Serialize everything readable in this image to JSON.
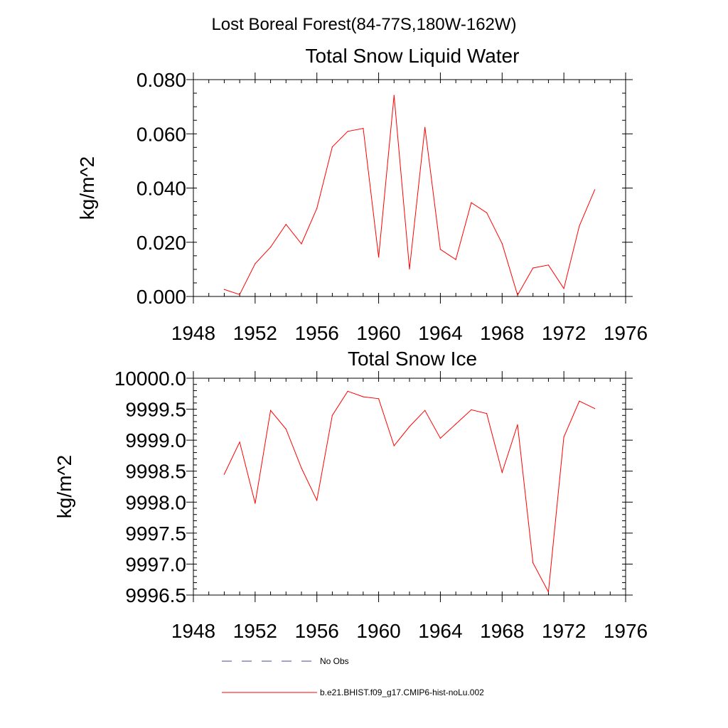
{
  "page_title": "Lost Boreal Forest(84-77S,180W-162W)",
  "colors": {
    "series": "#ff0000",
    "no_obs": "#4a4a8a",
    "axis": "#000000"
  },
  "legend": [
    {
      "label": "No Obs",
      "style": "dashed",
      "color": "#4a4a8a"
    },
    {
      "label": "b.e21.BHIST.f09_g17.CMIP6-hist-noLu.002",
      "style": "solid",
      "color": "#ff0000"
    }
  ],
  "chart_data": [
    {
      "type": "line",
      "title": "Total Snow Liquid Water",
      "xlabel": "",
      "ylabel": "kg/m^2",
      "xlim": [
        1948,
        1976
      ],
      "ylim": [
        0,
        0.08
      ],
      "xticks": [
        1948,
        1952,
        1956,
        1960,
        1964,
        1968,
        1972,
        1976
      ],
      "xtick_labels": [
        "1948",
        "1952",
        "1956",
        "1960",
        "1964",
        "1968",
        "1972",
        "1976"
      ],
      "yticks": [
        0,
        0.02,
        0.04,
        0.06,
        0.08
      ],
      "ytick_labels": [
        "0.000",
        "0.020",
        "0.040",
        "0.060",
        "0.080"
      ],
      "y_minor_step": 0.005,
      "x_minor_step": 1,
      "series": [
        {
          "name": "b.e21.BHIST.f09_g17.CMIP6-hist-noLu.002",
          "color": "#ff0000",
          "x": [
            1950,
            1951,
            1952,
            1953,
            1954,
            1955,
            1956,
            1957,
            1958,
            1959,
            1960,
            1961,
            1962,
            1963,
            1964,
            1965,
            1966,
            1967,
            1968,
            1969,
            1970,
            1971,
            1972,
            1973,
            1974
          ],
          "y": [
            0.0026,
            0.0007,
            0.0121,
            0.0182,
            0.0266,
            0.0194,
            0.0325,
            0.0552,
            0.0609,
            0.062,
            0.0145,
            0.0742,
            0.0101,
            0.0624,
            0.0174,
            0.0136,
            0.0346,
            0.0309,
            0.0195,
            0.0005,
            0.0105,
            0.0116,
            0.0029,
            0.026,
            0.0394
          ]
        }
      ]
    },
    {
      "type": "line",
      "title": "Total Snow Ice",
      "xlabel": "",
      "ylabel": "kg/m^2",
      "xlim": [
        1948,
        1976
      ],
      "ylim": [
        9996.5,
        10000.0
      ],
      "xticks": [
        1948,
        1952,
        1956,
        1960,
        1964,
        1968,
        1972,
        1976
      ],
      "xtick_labels": [
        "1948",
        "1952",
        "1956",
        "1960",
        "1964",
        "1968",
        "1972",
        "1976"
      ],
      "yticks": [
        9996.5,
        9997.0,
        9997.5,
        9998.0,
        9998.5,
        9999.0,
        9999.5,
        10000.0
      ],
      "ytick_labels": [
        "9996.5",
        "9997.0",
        "9997.5",
        "9998.0",
        "9998.5",
        "9999.0",
        "9999.5",
        "10000.0"
      ],
      "y_minor_step": 0.1,
      "x_minor_step": 1,
      "series": [
        {
          "name": "b.e21.BHIST.f09_g17.CMIP6-hist-noLu.002",
          "color": "#ff0000",
          "x": [
            1950,
            1951,
            1952,
            1953,
            1954,
            1955,
            1956,
            1957,
            1958,
            1959,
            1960,
            1961,
            1962,
            1963,
            1964,
            1965,
            1966,
            1967,
            1968,
            1969,
            1970,
            1971,
            1972,
            1973,
            1974
          ],
          "y": [
            9998.45,
            9998.97,
            9997.98,
            9999.48,
            9999.18,
            9998.55,
            9998.03,
            9999.4,
            9999.79,
            9999.7,
            9999.67,
            9998.91,
            9999.22,
            9999.48,
            9999.03,
            9999.26,
            9999.49,
            9999.43,
            9998.48,
            9999.25,
            9997.02,
            9996.55,
            9999.05,
            9999.63,
            9999.51
          ]
        }
      ]
    }
  ]
}
